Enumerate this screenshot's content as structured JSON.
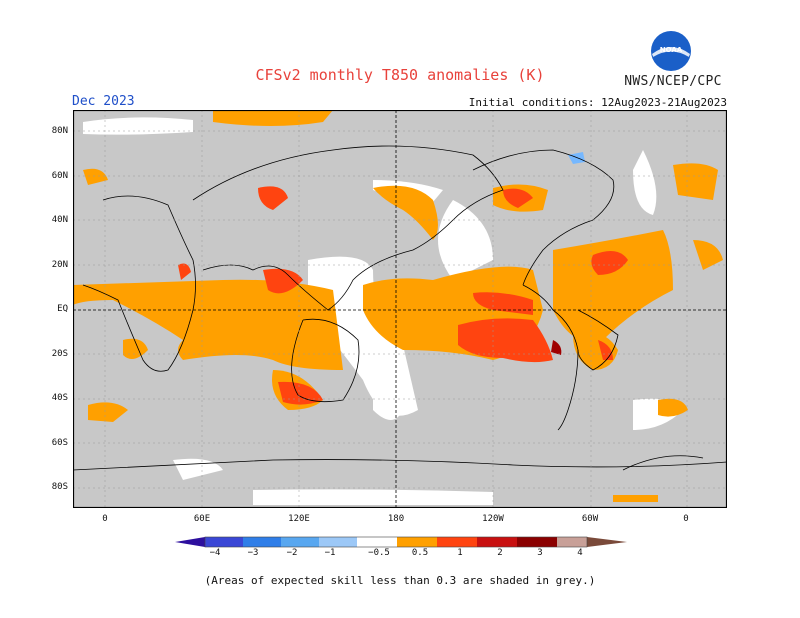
{
  "header": {
    "title": "CFSv2 monthly T850 anomalies (K)",
    "credit": "NWS/NCEP/CPC",
    "valid_month": "Dec 2023",
    "initial_conditions": "Initial conditions: 12Aug2023-21Aug2023",
    "logo_text": "NOAA"
  },
  "map": {
    "lat_labels": [
      "80N",
      "60N",
      "40N",
      "20N",
      "EQ",
      "20S",
      "40S",
      "60S",
      "80S"
    ],
    "lon_labels": [
      "0",
      "60E",
      "120E",
      "180",
      "120W",
      "60W",
      "0"
    ],
    "colors": {
      "no_skill": "#c8c8c8",
      "neutral": "#ffffff",
      "a05_1": "#ffa000",
      "a1_2": "#ff4410",
      "a2_3": "#a00000",
      "n05_1": "#76b8ff",
      "coast": "#000000"
    }
  },
  "colorbar": {
    "labels": [
      "−4",
      "−3",
      "−2",
      "−1",
      "−0.5",
      "0.5",
      "1",
      "2",
      "3",
      "4"
    ],
    "colors": [
      "#2d0f9e",
      "#3a47d6",
      "#2f7ee8",
      "#58a7f0",
      "#9cc8f7",
      "#ffffff",
      "#ffa000",
      "#ff4410",
      "#c81010",
      "#8b0000",
      "#c8a098",
      "#7a4a3a"
    ]
  },
  "footer": "(Areas of expected skill less than 0.3 are shaded in grey.)"
}
